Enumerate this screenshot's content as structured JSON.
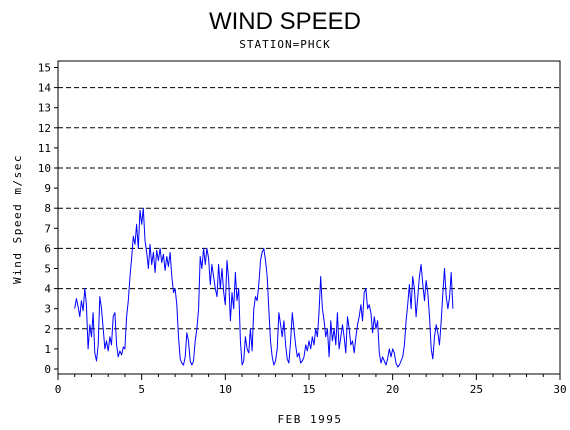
{
  "chart_data": {
    "type": "line",
    "title": "WIND SPEED",
    "subtitle": "STATION=PHCK",
    "xlabel": "FEB 1995",
    "ylabel": "Wind Speed m/sec",
    "xlim": [
      0,
      30
    ],
    "ylim": [
      0,
      15.5
    ],
    "x_ticks": [
      0,
      5,
      10,
      15,
      20,
      25,
      30
    ],
    "y_ticks": [
      0,
      1,
      2,
      3,
      4,
      5,
      6,
      7,
      8,
      9,
      10,
      11,
      12,
      13,
      14,
      15
    ],
    "reference_lines": [
      2,
      4,
      6,
      8,
      10,
      12,
      14
    ],
    "series": [
      {
        "color": "#0000ff",
        "points": [
          [
            1.0,
            3.0
          ],
          [
            1.1,
            3.5
          ],
          [
            1.2,
            3.1
          ],
          [
            1.3,
            2.6
          ],
          [
            1.4,
            3.4
          ],
          [
            1.5,
            2.9
          ],
          [
            1.6,
            4.0
          ],
          [
            1.7,
            3.2
          ],
          [
            1.8,
            1.0
          ],
          [
            1.9,
            2.2
          ],
          [
            2.0,
            1.6
          ],
          [
            2.1,
            2.8
          ],
          [
            2.2,
            0.8
          ],
          [
            2.3,
            0.4
          ],
          [
            2.4,
            1.2
          ],
          [
            2.5,
            3.6
          ],
          [
            2.6,
            3.0
          ],
          [
            2.7,
            2.0
          ],
          [
            2.8,
            1.0
          ],
          [
            2.9,
            1.4
          ],
          [
            3.0,
            0.9
          ],
          [
            3.1,
            1.6
          ],
          [
            3.2,
            1.2
          ],
          [
            3.3,
            2.6
          ],
          [
            3.4,
            2.8
          ],
          [
            3.5,
            1.2
          ],
          [
            3.6,
            0.6
          ],
          [
            3.7,
            0.9
          ],
          [
            3.8,
            0.7
          ],
          [
            3.9,
            1.1
          ],
          [
            4.0,
            1.0
          ],
          [
            4.1,
            2.6
          ],
          [
            4.2,
            3.4
          ],
          [
            4.3,
            4.6
          ],
          [
            4.4,
            5.5
          ],
          [
            4.5,
            6.6
          ],
          [
            4.6,
            6.2
          ],
          [
            4.7,
            7.2
          ],
          [
            4.8,
            6.0
          ],
          [
            4.9,
            7.9
          ],
          [
            5.0,
            7.2
          ],
          [
            5.1,
            8.0
          ],
          [
            5.2,
            6.4
          ],
          [
            5.3,
            5.8
          ],
          [
            5.4,
            5.0
          ],
          [
            5.5,
            6.2
          ],
          [
            5.6,
            5.2
          ],
          [
            5.7,
            5.8
          ],
          [
            5.8,
            4.8
          ],
          [
            5.9,
            5.9
          ],
          [
            6.0,
            5.4
          ],
          [
            6.1,
            6.0
          ],
          [
            6.2,
            5.3
          ],
          [
            6.3,
            5.7
          ],
          [
            6.4,
            4.9
          ],
          [
            6.5,
            5.6
          ],
          [
            6.6,
            5.1
          ],
          [
            6.7,
            5.8
          ],
          [
            6.8,
            4.6
          ],
          [
            6.9,
            3.8
          ],
          [
            7.0,
            4.0
          ],
          [
            7.1,
            3.2
          ],
          [
            7.2,
            1.6
          ],
          [
            7.3,
            0.5
          ],
          [
            7.4,
            0.3
          ],
          [
            7.5,
            0.2
          ],
          [
            7.6,
            0.6
          ],
          [
            7.7,
            1.8
          ],
          [
            7.8,
            1.4
          ],
          [
            7.9,
            0.4
          ],
          [
            8.0,
            0.2
          ],
          [
            8.1,
            0.4
          ],
          [
            8.2,
            1.4
          ],
          [
            8.3,
            2.0
          ],
          [
            8.4,
            3.0
          ],
          [
            8.5,
            5.6
          ],
          [
            8.6,
            5.0
          ],
          [
            8.7,
            6.0
          ],
          [
            8.8,
            5.2
          ],
          [
            8.9,
            6.0
          ],
          [
            9.0,
            5.5
          ],
          [
            9.1,
            4.2
          ],
          [
            9.2,
            5.2
          ],
          [
            9.3,
            4.6
          ],
          [
            9.4,
            4.0
          ],
          [
            9.5,
            3.6
          ],
          [
            9.6,
            5.2
          ],
          [
            9.7,
            4.0
          ],
          [
            9.8,
            5.0
          ],
          [
            9.9,
            3.8
          ],
          [
            10.0,
            3.2
          ],
          [
            10.1,
            5.4
          ],
          [
            10.2,
            4.4
          ],
          [
            10.3,
            2.4
          ],
          [
            10.4,
            3.8
          ],
          [
            10.5,
            3.0
          ],
          [
            10.6,
            4.8
          ],
          [
            10.7,
            3.4
          ],
          [
            10.8,
            4.0
          ],
          [
            10.9,
            1.4
          ],
          [
            11.0,
            0.2
          ],
          [
            11.1,
            0.4
          ],
          [
            11.2,
            1.6
          ],
          [
            11.3,
            1.0
          ],
          [
            11.4,
            0.8
          ],
          [
            11.5,
            2.0
          ],
          [
            11.6,
            0.9
          ],
          [
            11.7,
            3.0
          ],
          [
            11.8,
            3.6
          ],
          [
            11.9,
            3.4
          ],
          [
            12.0,
            4.2
          ],
          [
            12.1,
            5.4
          ],
          [
            12.2,
            5.8
          ],
          [
            12.3,
            6.0
          ],
          [
            12.4,
            5.4
          ],
          [
            12.5,
            4.6
          ],
          [
            12.6,
            3.0
          ],
          [
            12.7,
            1.4
          ],
          [
            12.8,
            0.6
          ],
          [
            12.9,
            0.2
          ],
          [
            13.0,
            0.4
          ],
          [
            13.1,
            1.0
          ],
          [
            13.2,
            2.8
          ],
          [
            13.3,
            2.2
          ],
          [
            13.4,
            1.6
          ],
          [
            13.5,
            2.4
          ],
          [
            13.6,
            1.2
          ],
          [
            13.7,
            0.5
          ],
          [
            13.8,
            0.3
          ],
          [
            13.9,
            1.4
          ],
          [
            14.0,
            2.8
          ],
          [
            14.1,
            2.0
          ],
          [
            14.2,
            1.2
          ],
          [
            14.3,
            0.6
          ],
          [
            14.4,
            0.8
          ],
          [
            14.5,
            0.3
          ],
          [
            14.6,
            0.4
          ],
          [
            14.7,
            0.6
          ],
          [
            14.8,
            1.2
          ],
          [
            14.9,
            0.9
          ],
          [
            15.0,
            1.4
          ],
          [
            15.1,
            1.0
          ],
          [
            15.2,
            1.6
          ],
          [
            15.3,
            1.2
          ],
          [
            15.4,
            2.0
          ],
          [
            15.5,
            1.6
          ],
          [
            15.6,
            2.8
          ],
          [
            15.7,
            4.6
          ],
          [
            15.8,
            3.0
          ],
          [
            15.9,
            2.4
          ],
          [
            16.0,
            1.6
          ],
          [
            16.1,
            2.0
          ],
          [
            16.2,
            0.6
          ],
          [
            16.3,
            2.4
          ],
          [
            16.4,
            1.4
          ],
          [
            16.5,
            2.0
          ],
          [
            16.6,
            1.2
          ],
          [
            16.7,
            2.8
          ],
          [
            16.8,
            1.0
          ],
          [
            16.9,
            1.6
          ],
          [
            17.0,
            2.2
          ],
          [
            17.1,
            1.6
          ],
          [
            17.2,
            0.8
          ],
          [
            17.3,
            2.6
          ],
          [
            17.4,
            2.0
          ],
          [
            17.5,
            1.2
          ],
          [
            17.6,
            1.4
          ],
          [
            17.7,
            0.8
          ],
          [
            17.8,
            1.6
          ],
          [
            17.9,
            2.2
          ],
          [
            18.0,
            2.6
          ],
          [
            18.1,
            3.2
          ],
          [
            18.2,
            2.4
          ],
          [
            18.3,
            3.8
          ],
          [
            18.4,
            4.0
          ],
          [
            18.5,
            3.0
          ],
          [
            18.6,
            3.2
          ],
          [
            18.7,
            2.8
          ],
          [
            18.8,
            1.8
          ],
          [
            18.9,
            2.6
          ],
          [
            19.0,
            2.0
          ],
          [
            19.1,
            2.4
          ],
          [
            19.2,
            0.8
          ],
          [
            19.3,
            0.3
          ],
          [
            19.4,
            0.6
          ],
          [
            19.5,
            0.4
          ],
          [
            19.6,
            0.2
          ],
          [
            19.7,
            0.5
          ],
          [
            19.8,
            1.0
          ],
          [
            19.9,
            0.6
          ],
          [
            20.0,
            1.0
          ],
          [
            20.1,
            0.8
          ],
          [
            20.2,
            0.3
          ],
          [
            20.3,
            0.1
          ],
          [
            20.4,
            0.2
          ],
          [
            20.5,
            0.4
          ],
          [
            20.6,
            0.6
          ],
          [
            20.7,
            1.2
          ],
          [
            20.8,
            2.4
          ],
          [
            20.9,
            3.2
          ],
          [
            21.0,
            4.2
          ],
          [
            21.1,
            3.0
          ],
          [
            21.2,
            4.6
          ],
          [
            21.3,
            4.0
          ],
          [
            21.4,
            2.6
          ],
          [
            21.5,
            3.6
          ],
          [
            21.6,
            4.6
          ],
          [
            21.7,
            5.2
          ],
          [
            21.8,
            4.2
          ],
          [
            21.9,
            3.4
          ],
          [
            22.0,
            4.4
          ],
          [
            22.1,
            3.8
          ],
          [
            22.2,
            2.6
          ],
          [
            22.3,
            1.0
          ],
          [
            22.4,
            0.5
          ],
          [
            22.5,
            1.6
          ],
          [
            22.6,
            2.2
          ],
          [
            22.7,
            1.8
          ],
          [
            22.8,
            1.2
          ],
          [
            22.9,
            2.4
          ],
          [
            23.0,
            3.8
          ],
          [
            23.1,
            5.0
          ],
          [
            23.2,
            3.6
          ],
          [
            23.3,
            3.0
          ],
          [
            23.4,
            3.6
          ],
          [
            23.5,
            4.8
          ],
          [
            23.6,
            3.0
          ]
        ]
      }
    ]
  }
}
